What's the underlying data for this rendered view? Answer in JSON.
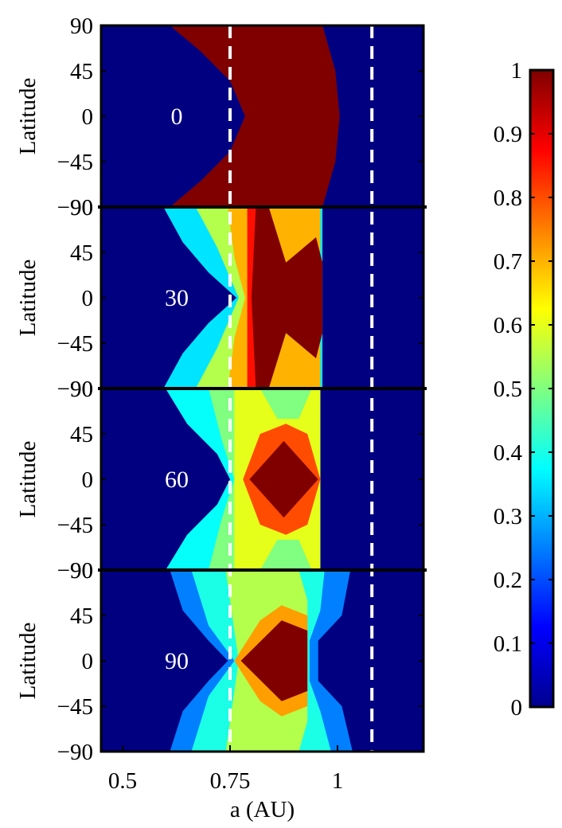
{
  "chart_data": {
    "type": "heatmap",
    "xlabel": "a (AU)",
    "xlim": [
      0.45,
      1.2
    ],
    "xticks": [
      0.5,
      0.75,
      1
    ],
    "xtick_labels": [
      "0.5",
      "0.75",
      "1"
    ],
    "ylim": [
      -90,
      90
    ],
    "yticks": [
      90,
      45,
      0,
      -45,
      -90
    ],
    "ytick_labels": [
      "90",
      "45",
      "0",
      "−45",
      "−90"
    ],
    "vlines": [
      0.75,
      1.08
    ],
    "colorbar": {
      "range": [
        0,
        1
      ],
      "ticks": [
        0,
        0.1,
        0.2,
        0.3,
        0.4,
        0.5,
        0.6,
        0.7,
        0.8,
        0.9,
        1
      ],
      "tick_labels": [
        "0",
        "0.1",
        "0.2",
        "0.3",
        "0.4",
        "0.5",
        "0.6",
        "0.7",
        "0.8",
        "0.9",
        "1"
      ],
      "colormap": "jet"
    },
    "panels": [
      {
        "ylabel": "Latitude",
        "annotation": "0",
        "regions": [
          {
            "value": 1.0,
            "polygon": [
              [
                0.61,
                90
              ],
              [
                0.785,
                90
              ],
              [
                0.965,
                90
              ],
              [
                0.995,
                45
              ],
              [
                1.005,
                0
              ],
              [
                0.995,
                -45
              ],
              [
                0.965,
                -90
              ],
              [
                0.785,
                -90
              ],
              [
                0.61,
                -90
              ],
              [
                0.68,
                -65
              ],
              [
                0.75,
                -35
              ],
              [
                0.785,
                0
              ],
              [
                0.75,
                35
              ],
              [
                0.68,
                65
              ]
            ]
          }
        ]
      },
      {
        "ylabel": "Latitude",
        "annotation": "30",
        "regions": [
          {
            "value": 0.35,
            "polygon": [
              [
                0.595,
                90
              ],
              [
                0.965,
                90
              ],
              [
                0.965,
                -90
              ],
              [
                0.595,
                -90
              ],
              [
                0.64,
                -55
              ],
              [
                0.7,
                -25
              ],
              [
                0.765,
                0
              ],
              [
                0.7,
                25
              ],
              [
                0.64,
                55
              ]
            ]
          },
          {
            "value": 0.55,
            "polygon": [
              [
                0.67,
                90
              ],
              [
                0.96,
                90
              ],
              [
                0.96,
                -90
              ],
              [
                0.67,
                -90
              ],
              [
                0.72,
                -50
              ],
              [
                0.77,
                0
              ],
              [
                0.72,
                50
              ]
            ]
          },
          {
            "value": 0.7,
            "polygon": [
              [
                0.745,
                90
              ],
              [
                0.96,
                90
              ],
              [
                0.96,
                -90
              ],
              [
                0.745,
                -90
              ],
              [
                0.76,
                -40
              ],
              [
                0.785,
                0
              ],
              [
                0.76,
                40
              ]
            ]
          },
          {
            "value": 0.86,
            "polygon": [
              [
                0.79,
                90
              ],
              [
                0.81,
                90
              ],
              [
                0.81,
                -90
              ],
              [
                0.79,
                -90
              ]
            ]
          },
          {
            "value": 1.0,
            "polygon": [
              [
                0.81,
                90
              ],
              [
                0.84,
                90
              ],
              [
                0.88,
                35
              ],
              [
                0.95,
                60
              ],
              [
                0.965,
                35
              ],
              [
                0.965,
                -35
              ],
              [
                0.95,
                -60
              ],
              [
                0.88,
                -35
              ],
              [
                0.84,
                -90
              ],
              [
                0.81,
                -90
              ],
              [
                0.8,
                0
              ]
            ]
          }
        ]
      },
      {
        "ylabel": "Latitude",
        "annotation": "60",
        "regions": [
          {
            "value": 0.38,
            "polygon": [
              [
                0.6,
                90
              ],
              [
                0.96,
                90
              ],
              [
                0.96,
                -90
              ],
              [
                0.6,
                -90
              ],
              [
                0.65,
                -55
              ],
              [
                0.72,
                -25
              ],
              [
                0.75,
                0
              ],
              [
                0.72,
                25
              ],
              [
                0.65,
                55
              ]
            ]
          },
          {
            "value": 0.5,
            "polygon": [
              [
                0.7,
                90
              ],
              [
                0.96,
                90
              ],
              [
                0.96,
                -90
              ],
              [
                0.7,
                -90
              ],
              [
                0.73,
                -40
              ],
              [
                0.76,
                0
              ],
              [
                0.73,
                40
              ]
            ]
          },
          {
            "value": 0.6,
            "polygon": [
              [
                0.76,
                90
              ],
              [
                0.82,
                90
              ],
              [
                0.86,
                60
              ],
              [
                0.91,
                60
              ],
              [
                0.94,
                90
              ],
              [
                0.96,
                90
              ],
              [
                0.96,
                -90
              ],
              [
                0.94,
                -90
              ],
              [
                0.91,
                -60
              ],
              [
                0.86,
                -60
              ],
              [
                0.82,
                -90
              ],
              [
                0.76,
                -90
              ]
            ]
          },
          {
            "value": 0.8,
            "polygon": [
              [
                0.78,
                0
              ],
              [
                0.82,
                45
              ],
              [
                0.88,
                55
              ],
              [
                0.93,
                45
              ],
              [
                0.96,
                0
              ],
              [
                0.93,
                -45
              ],
              [
                0.88,
                -55
              ],
              [
                0.82,
                -45
              ]
            ]
          },
          {
            "value": 1.0,
            "polygon": [
              [
                0.795,
                0
              ],
              [
                0.875,
                38
              ],
              [
                0.955,
                0
              ],
              [
                0.875,
                -38
              ]
            ]
          }
        ]
      },
      {
        "ylabel": "Latitude",
        "annotation": "90",
        "regions": [
          {
            "value": 0.25,
            "polygon": [
              [
                0.61,
                90
              ],
              [
                1.03,
                90
              ],
              [
                1.01,
                45
              ],
              [
                0.955,
                20
              ],
              [
                0.955,
                -20
              ],
              [
                1.01,
                -45
              ],
              [
                1.035,
                -90
              ],
              [
                0.61,
                -90
              ],
              [
                0.64,
                -50
              ],
              [
                0.7,
                -20
              ],
              [
                0.745,
                0
              ],
              [
                0.7,
                20
              ],
              [
                0.64,
                50
              ]
            ]
          },
          {
            "value": 0.4,
            "polygon": [
              [
                0.66,
                90
              ],
              [
                0.97,
                90
              ],
              [
                0.96,
                50
              ],
              [
                0.935,
                20
              ],
              [
                0.935,
                -20
              ],
              [
                0.96,
                -50
              ],
              [
                0.985,
                -90
              ],
              [
                0.66,
                -90
              ],
              [
                0.7,
                -35
              ],
              [
                0.76,
                0
              ],
              [
                0.7,
                35
              ]
            ]
          },
          {
            "value": 0.55,
            "polygon": [
              [
                0.74,
                90
              ],
              [
                0.91,
                90
              ],
              [
                0.93,
                60
              ],
              [
                0.93,
                -60
              ],
              [
                0.91,
                -90
              ],
              [
                0.74,
                -90
              ],
              [
                0.76,
                -30
              ],
              [
                0.77,
                0
              ],
              [
                0.76,
                30
              ]
            ]
          },
          {
            "value": 0.72,
            "polygon": [
              [
                0.76,
                0
              ],
              [
                0.82,
                40
              ],
              [
                0.87,
                55
              ],
              [
                0.93,
                45
              ],
              [
                0.93,
                -45
              ],
              [
                0.87,
                -55
              ],
              [
                0.82,
                -40
              ]
            ]
          },
          {
            "value": 1.0,
            "polygon": [
              [
                0.775,
                0
              ],
              [
                0.87,
                40
              ],
              [
                0.93,
                30
              ],
              [
                0.93,
                -30
              ],
              [
                0.87,
                -40
              ]
            ]
          }
        ]
      }
    ]
  }
}
